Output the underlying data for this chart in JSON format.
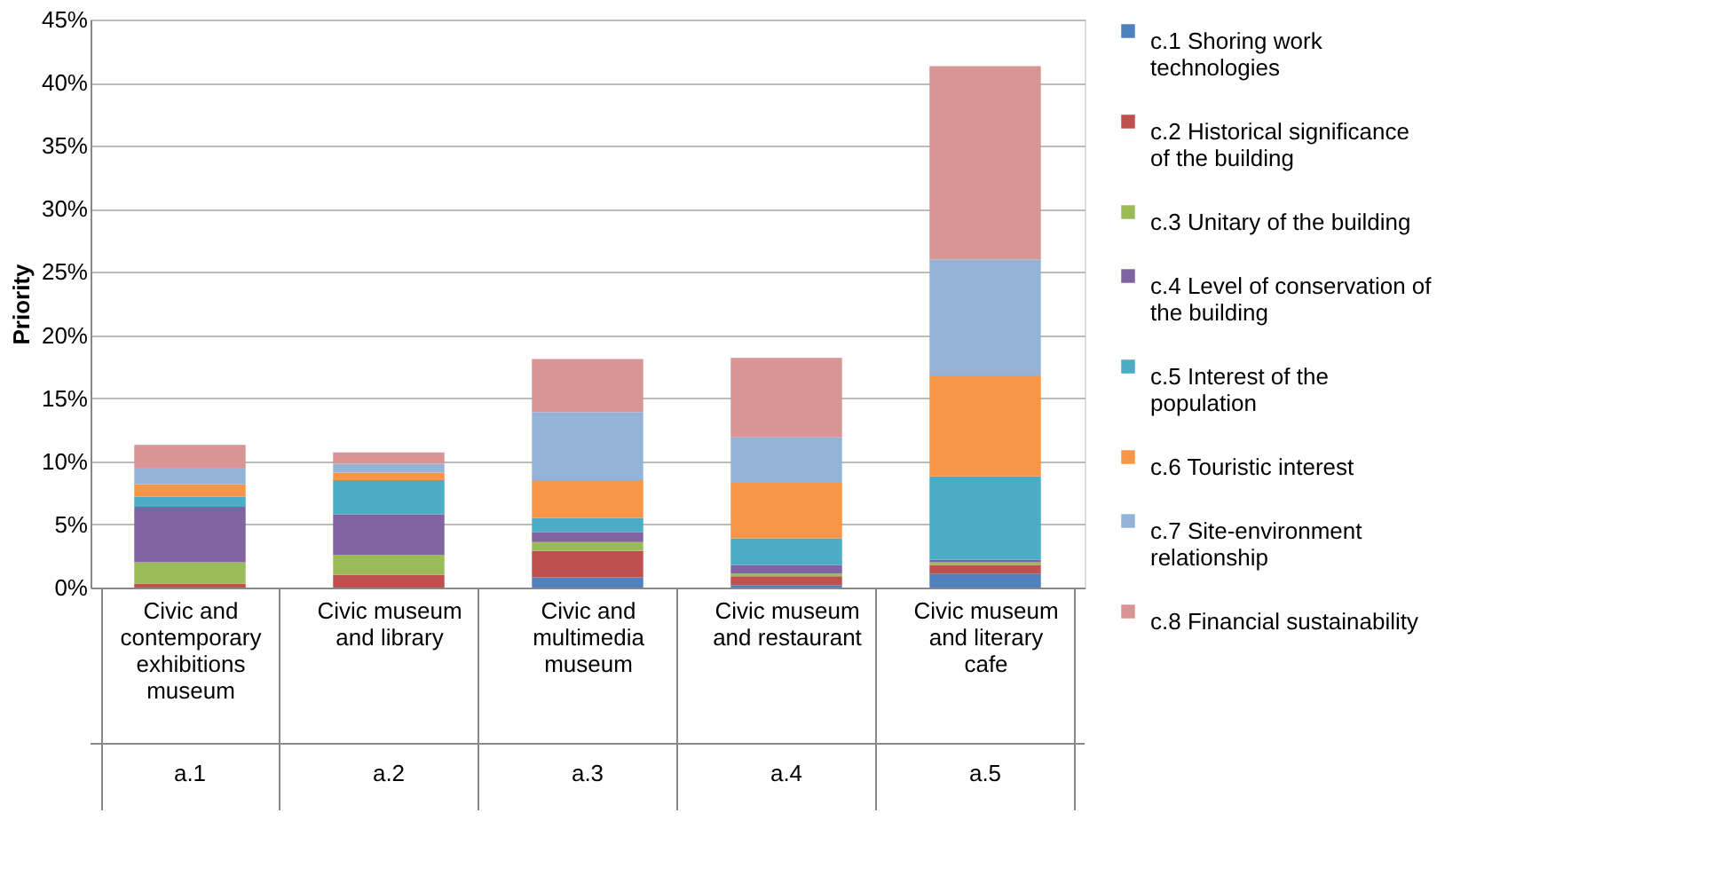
{
  "chart_data": {
    "type": "bar",
    "stacked": true,
    "ylabel": "Priority",
    "categories": [
      "Civic and contemporary exhibitions museum",
      "Civic museum and library",
      "Civic and multimedia museum",
      "Civic museum and restaurant",
      "Civic museum and literary cafe"
    ],
    "annotations": [
      "a.1",
      "a.2",
      "a.3",
      "a.4",
      "a.5"
    ],
    "series": [
      {
        "name": "c.1 Shoring work technologies",
        "color": "#4f81bd",
        "values": [
          null,
          0,
          0.8,
          0.2,
          1.1
        ]
      },
      {
        "name": "c.2 Historical significance of the building",
        "color": "#c0504d",
        "values": [
          0.3,
          1.0,
          2.1,
          0.7,
          0.7
        ]
      },
      {
        "name": "c.3 Unitary of the building",
        "color": "#9bbb59",
        "values": [
          1.7,
          1.6,
          0.7,
          0.2,
          0.2
        ]
      },
      {
        "name": "c.4 Level of conservation of the building",
        "color": "#8064a2",
        "values": [
          4.4,
          3.2,
          0.8,
          0.7,
          0.2
        ]
      },
      {
        "name": "c.5 Interest of the population",
        "color": "#4bacc6",
        "values": [
          0.8,
          2.7,
          1.1,
          2.1,
          6.6
        ]
      },
      {
        "name": "c.6 Touristic interest",
        "color": "#f79646",
        "values": [
          1.0,
          0.6,
          3.0,
          4.4,
          8.0
        ]
      },
      {
        "name": "c.7 Site-environment relationship",
        "color": "#95b3d7",
        "values": [
          1.3,
          0.7,
          5.4,
          3.6,
          9.2
        ]
      },
      {
        "name": "c.8 Financial sustainability",
        "color": "#d99594",
        "values": [
          1.8,
          0.9,
          4.2,
          6.3,
          15.3
        ]
      }
    ],
    "ylim": [
      0,
      45
    ],
    "yticks": [
      {
        "value": 0,
        "label": "0%"
      },
      {
        "value": 5,
        "label": "5%"
      },
      {
        "value": 10,
        "label": "10%"
      },
      {
        "value": 15,
        "label": "15%"
      },
      {
        "value": 20,
        "label": "20%"
      },
      {
        "value": 25,
        "label": "25%"
      },
      {
        "value": 30,
        "label": "30%"
      },
      {
        "value": 35,
        "label": "35%"
      },
      {
        "value": 40,
        "label": "40%"
      },
      {
        "value": 45,
        "label": "45%"
      }
    ],
    "grid": "y",
    "legend": "right"
  }
}
